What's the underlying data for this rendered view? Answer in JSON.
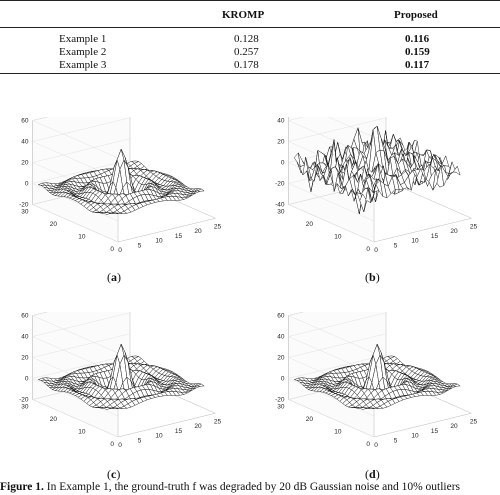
{
  "table": {
    "headers": [
      "",
      "KROMP",
      "Proposed"
    ],
    "rows": [
      {
        "label": "Example 1",
        "kromp": "0.128",
        "proposed": "0.116"
      },
      {
        "label": "Example 2",
        "kromp": "0.257",
        "proposed": "0.159"
      },
      {
        "label": "Example 3",
        "kromp": "0.178",
        "proposed": "0.117"
      }
    ]
  },
  "panels": [
    {
      "id": "a",
      "label_letter": "a"
    },
    {
      "id": "b",
      "label_letter": "b"
    },
    {
      "id": "c",
      "label_letter": "c"
    },
    {
      "id": "d",
      "label_letter": "d"
    }
  ],
  "axes": {
    "z_ticks_ab": [
      "60",
      "40",
      "20",
      "0",
      "-20",
      "-40"
    ],
    "z_ticks_a": [
      "60",
      "40",
      "20",
      "0",
      "-20"
    ],
    "x_ticks": [
      "0",
      "5",
      "10",
      "15",
      "20",
      "25"
    ],
    "y_ticks": [
      "30",
      "20",
      "10",
      "0"
    ]
  },
  "caption": {
    "prefix": "Figure 1.",
    "text": " In Example 1, the ground-truth f was degraded by 20 dB Gaussian noise and 10% outliers"
  }
}
